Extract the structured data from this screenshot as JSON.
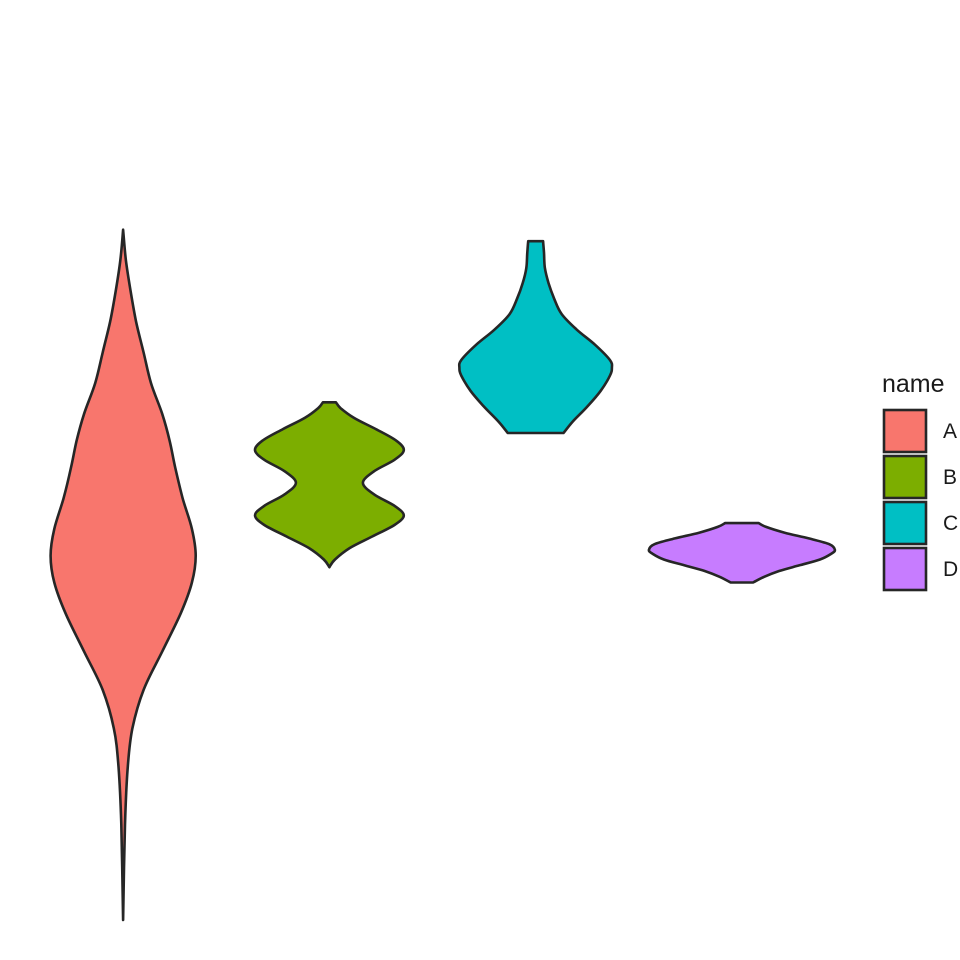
{
  "chart_data": {
    "type": "violin",
    "title": "",
    "xlabel": "",
    "ylabel": "",
    "axes_visible": false,
    "grid": false,
    "ylim": [
      -0.8,
      1.5
    ],
    "legend": {
      "title": "name",
      "position": "right"
    },
    "series": [
      {
        "name": "A",
        "color": "#F8766D",
        "density": [
          [
            -0.8,
            0.0
          ],
          [
            -0.55,
            0.02
          ],
          [
            -0.4,
            0.05
          ],
          [
            -0.3,
            0.1
          ],
          [
            -0.2,
            0.22
          ],
          [
            -0.1,
            0.42
          ],
          [
            0.0,
            0.62
          ],
          [
            0.08,
            0.74
          ],
          [
            0.15,
            0.78
          ],
          [
            0.22,
            0.74
          ],
          [
            0.3,
            0.64
          ],
          [
            0.38,
            0.56
          ],
          [
            0.45,
            0.5
          ],
          [
            0.52,
            0.42
          ],
          [
            0.6,
            0.3
          ],
          [
            0.68,
            0.22
          ],
          [
            0.76,
            0.14
          ],
          [
            0.84,
            0.08
          ],
          [
            0.92,
            0.03
          ],
          [
            1.0,
            0.0
          ]
        ]
      },
      {
        "name": "B",
        "color": "#7CAE00",
        "density": [
          [
            0.12,
            0.0
          ],
          [
            0.14,
            0.06
          ],
          [
            0.17,
            0.22
          ],
          [
            0.2,
            0.46
          ],
          [
            0.23,
            0.7
          ],
          [
            0.255,
            0.8
          ],
          [
            0.28,
            0.7
          ],
          [
            0.31,
            0.48
          ],
          [
            0.34,
            0.36
          ],
          [
            0.37,
            0.48
          ],
          [
            0.4,
            0.7
          ],
          [
            0.425,
            0.8
          ],
          [
            0.45,
            0.72
          ],
          [
            0.48,
            0.5
          ],
          [
            0.51,
            0.26
          ],
          [
            0.535,
            0.12
          ],
          [
            0.55,
            0.07
          ]
        ]
      },
      {
        "name": "C",
        "color": "#00BFC4",
        "density": [
          [
            0.47,
            0.3
          ],
          [
            0.5,
            0.4
          ],
          [
            0.54,
            0.56
          ],
          [
            0.58,
            0.7
          ],
          [
            0.62,
            0.8
          ],
          [
            0.64,
            0.82
          ],
          [
            0.66,
            0.8
          ],
          [
            0.7,
            0.64
          ],
          [
            0.74,
            0.44
          ],
          [
            0.78,
            0.28
          ],
          [
            0.82,
            0.2
          ],
          [
            0.86,
            0.14
          ],
          [
            0.9,
            0.1
          ],
          [
            0.94,
            0.09
          ],
          [
            0.97,
            0.08
          ]
        ]
      },
      {
        "name": "D",
        "color": "#C77CFF",
        "density": [
          [
            0.08,
            0.12
          ],
          [
            0.095,
            0.24
          ],
          [
            0.11,
            0.4
          ],
          [
            0.125,
            0.62
          ],
          [
            0.14,
            0.84
          ],
          [
            0.155,
            0.96
          ],
          [
            0.165,
            1.0
          ],
          [
            0.18,
            0.94
          ],
          [
            0.195,
            0.72
          ],
          [
            0.21,
            0.46
          ],
          [
            0.225,
            0.26
          ],
          [
            0.235,
            0.18
          ]
        ]
      }
    ]
  }
}
